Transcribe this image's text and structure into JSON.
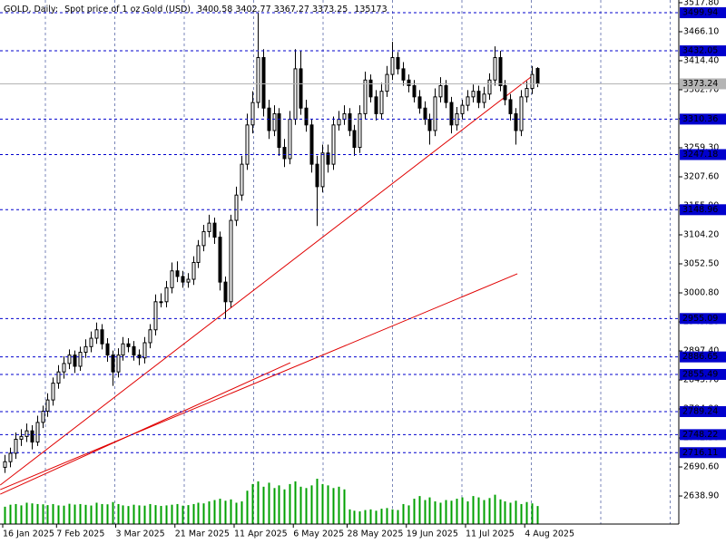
{
  "chart_data": {
    "type": "candlestick",
    "symbol": "GOLD, Daily:",
    "description": "Spot price of 1 oz Gold (USD)",
    "open": [
      2690,
      2700,
      2715,
      2740,
      2745,
      2755,
      2735,
      2770,
      2790,
      2810,
      2840,
      2860,
      2875,
      2890,
      2870,
      2895,
      2905,
      2920,
      2935,
      2910,
      2890,
      2860,
      2890,
      2910,
      2905,
      2890,
      2885,
      2912,
      2935,
      2985,
      2985,
      3010,
      3040,
      3030,
      3020,
      3025,
      3055,
      3085,
      3110,
      3125,
      3100,
      3020,
      2985,
      3130,
      3175,
      3230,
      3300,
      3340,
      3420,
      3330,
      3290,
      3320,
      3260,
      3240,
      3310,
      3400,
      3330,
      3300,
      3230,
      3190,
      3250,
      3230,
      3300,
      3310,
      3320,
      3290,
      3260,
      3320,
      3380,
      3350,
      3320,
      3360,
      3390,
      3420,
      3400,
      3380,
      3370,
      3350,
      3330,
      3310,
      3290,
      3350,
      3370,
      3340,
      3300,
      3320,
      3335,
      3350,
      3360,
      3340,
      3355,
      3380,
      3420,
      3370,
      3345,
      3320,
      3290,
      3350,
      3365,
      3400.58
    ],
    "high": [
      2712,
      2725,
      2752,
      2758,
      2768,
      2765,
      2782,
      2800,
      2822,
      2850,
      2872,
      2888,
      2900,
      2898,
      2905,
      2918,
      2932,
      2948,
      2945,
      2920,
      2898,
      2902,
      2922,
      2920,
      2915,
      2900,
      2922,
      2945,
      2998,
      3000,
      3022,
      3055,
      3057,
      3040,
      3036,
      3066,
      3095,
      3122,
      3140,
      3135,
      3110,
      3030,
      3140,
      3190,
      3245,
      3320,
      3360,
      3500,
      3435,
      3345,
      3335,
      3330,
      3275,
      3325,
      3435,
      3432,
      3345,
      3310,
      3245,
      3265,
      3265,
      3315,
      3325,
      3335,
      3330,
      3300,
      3335,
      3395,
      3390,
      3362,
      3375,
      3405,
      3448,
      3430,
      3412,
      3390,
      3380,
      3362,
      3342,
      3320,
      3365,
      3385,
      3380,
      3350,
      3332,
      3345,
      3362,
      3372,
      3370,
      3368,
      3392,
      3440,
      3432,
      3380,
      3355,
      3330,
      3362,
      3378,
      3405,
      3402.77
    ],
    "low": [
      2680,
      2690,
      2705,
      2728,
      2735,
      2722,
      2728,
      2760,
      2780,
      2800,
      2830,
      2848,
      2865,
      2858,
      2862,
      2885,
      2895,
      2910,
      2900,
      2878,
      2835,
      2850,
      2880,
      2895,
      2880,
      2872,
      2875,
      2902,
      2925,
      2975,
      2975,
      3000,
      3020,
      3010,
      3010,
      3015,
      3045,
      3075,
      3100,
      3088,
      3005,
      2955,
      2975,
      3120,
      3165,
      3220,
      3285,
      3330,
      3315,
      3275,
      3280,
      3245,
      3225,
      3230,
      3300,
      3318,
      3288,
      3215,
      3120,
      3180,
      3215,
      3220,
      3290,
      3300,
      3280,
      3245,
      3250,
      3310,
      3340,
      3308,
      3310,
      3350,
      3380,
      3390,
      3370,
      3358,
      3340,
      3320,
      3300,
      3265,
      3280,
      3340,
      3330,
      3285,
      3290,
      3310,
      3325,
      3340,
      3330,
      3330,
      3345,
      3370,
      3360,
      3335,
      3308,
      3265,
      3280,
      3340,
      3355,
      3367.27
    ],
    "close": [
      2700,
      2715,
      2740,
      2745,
      2755,
      2735,
      2770,
      2790,
      2810,
      2840,
      2860,
      2875,
      2890,
      2870,
      2895,
      2905,
      2920,
      2935,
      2910,
      2890,
      2860,
      2890,
      2910,
      2905,
      2890,
      2885,
      2912,
      2935,
      2985,
      2985,
      3010,
      3040,
      3030,
      3020,
      3025,
      3055,
      3085,
      3110,
      3125,
      3100,
      3020,
      2985,
      3130,
      3175,
      3230,
      3300,
      3340,
      3420,
      3330,
      3290,
      3320,
      3260,
      3240,
      3310,
      3400,
      3330,
      3300,
      3230,
      3190,
      3250,
      3230,
      3300,
      3310,
      3320,
      3290,
      3260,
      3320,
      3380,
      3350,
      3320,
      3360,
      3390,
      3420,
      3400,
      3380,
      3370,
      3350,
      3330,
      3310,
      3290,
      3350,
      3370,
      3340,
      3300,
      3320,
      3335,
      3350,
      3360,
      3340,
      3355,
      3380,
      3420,
      3370,
      3345,
      3320,
      3290,
      3350,
      3365,
      3390,
      3373.25
    ],
    "volume": [
      130000,
      145000,
      150000,
      140000,
      160000,
      155000,
      150000,
      148000,
      142000,
      150000,
      140000,
      138000,
      152000,
      146000,
      150000,
      144000,
      139000,
      160000,
      150000,
      148000,
      165000,
      150000,
      140000,
      135000,
      145000,
      140000,
      138000,
      150000,
      142000,
      136000,
      140000,
      145000,
      150000,
      138000,
      142000,
      150000,
      160000,
      155000,
      170000,
      180000,
      190000,
      175000,
      185000,
      160000,
      170000,
      250000,
      300000,
      320000,
      280000,
      310000,
      270000,
      290000,
      260000,
      300000,
      320000,
      280000,
      270000,
      290000,
      340000,
      300000,
      290000,
      270000,
      280000,
      260000,
      110000,
      100000,
      95000,
      105000,
      110000,
      100000,
      115000,
      120000,
      110000,
      105000,
      150000,
      140000,
      190000,
      210000,
      180000,
      200000,
      170000,
      160000,
      180000,
      175000,
      190000,
      200000,
      170000,
      210000,
      200000,
      180000,
      195000,
      220000,
      185000,
      170000,
      160000,
      175000,
      150000,
      165000,
      155000,
      135173
    ],
    "xticks": [
      {
        "value": 0,
        "label": "16 Jan 2025"
      },
      {
        "value": 10,
        "label": "7 Feb 2025"
      },
      {
        "value": 21,
        "label": "3 Mar 2025"
      },
      {
        "value": 32,
        "label": "21 Mar 2025"
      },
      {
        "value": 43,
        "label": "11 Apr 2025"
      },
      {
        "value": 54,
        "label": "6 May 2025"
      },
      {
        "value": 64,
        "label": "28 May 2025"
      },
      {
        "value": 75,
        "label": "19 Jun 2025"
      },
      {
        "value": 86,
        "label": "11 Jul 2025"
      },
      {
        "value": 97,
        "label": "4 Aug 2025"
      }
    ],
    "ylim": [
      2588.9,
      3522.6
    ],
    "yticks": [
      {
        "value": 3517.8,
        "label": "3517.80"
      },
      {
        "value": 3466.1,
        "label": "3466.10"
      },
      {
        "value": 3414.4,
        "label": "3414.40"
      },
      {
        "value": 3362.7,
        "label": "3362.70"
      },
      {
        "value": 3311,
        "label": "3311.00"
      },
      {
        "value": 3259.3,
        "label": "3259.30"
      },
      {
        "value": 3207.6,
        "label": "3207.60"
      },
      {
        "value": 3155.9,
        "label": "3155.90"
      },
      {
        "value": 3104.2,
        "label": "3104.20"
      },
      {
        "value": 3052.5,
        "label": "3052.50"
      },
      {
        "value": 3000.8,
        "label": "3000.80"
      },
      {
        "value": 2949.1,
        "label": "2949.10"
      },
      {
        "value": 2897.4,
        "label": "2897.40"
      },
      {
        "value": 2845.7,
        "label": "2845.70"
      },
      {
        "value": 2794,
        "label": "2794.00"
      },
      {
        "value": 2742.3,
        "label": "2742.30"
      },
      {
        "value": 2690.6,
        "label": "2690.60"
      },
      {
        "value": 2638.9,
        "label": "2638.90"
      }
    ],
    "levels": [
      3499.94,
      3432.05,
      3310.36,
      3247.18,
      3148.96,
      2955.09,
      2886.65,
      2855.49,
      2789.24,
      2748.22,
      2716.11
    ],
    "level_color": "#0000cd",
    "bid": 3373.24,
    "bid_color": "#b4b4b4",
    "trendlines": [
      {
        "x": [
          -0.8,
          97.8
        ],
        "y": [
          2658.3,
          3385.3
        ]
      },
      {
        "x": [
          -0.8,
          95.3
        ],
        "y": [
          2650.2,
          3034.8
        ]
      },
      {
        "x": [
          -0.8,
          53.1
        ],
        "y": [
          2642.1,
          2876.4
        ]
      }
    ],
    "trend_color": "#e00000",
    "volume_color": "#00a000",
    "grid": true
  }
}
